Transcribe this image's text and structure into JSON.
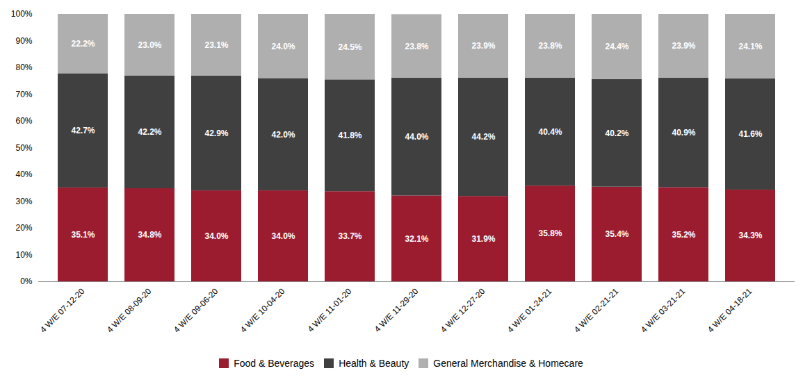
{
  "chart_data": {
    "type": "bar",
    "stacked": true,
    "data_labels": true,
    "grid": false,
    "legend": "bottom",
    "categories": [
      "4 W/E 07-12-20",
      "4 W/E 08-09-20",
      "4 W/E 09-06-20",
      "4 W/E 10-04-20",
      "4 W/E 11-01-20",
      "4 W/E 11-29-20",
      "4 W/E 12-27-20",
      "4 W/E 01-24-21",
      "4 W/E 02-21-21",
      "4 W/E 03-21-21",
      "4 W/E 04-18-21"
    ],
    "series": [
      {
        "name": "Food & Beverages",
        "color": "#9b1c2e",
        "values": [
          35.1,
          34.8,
          34.0,
          34.0,
          33.7,
          32.1,
          31.9,
          35.8,
          35.4,
          35.2,
          34.3
        ],
        "value_labels": [
          "35.1%",
          "34.8%",
          "34.0%",
          "34.0%",
          "33.7%",
          "32.1%",
          "31.9%",
          "35.8%",
          "35.4%",
          "35.2%",
          "34.3%"
        ]
      },
      {
        "name": "Health & Beauty",
        "color": "#404040",
        "values": [
          42.7,
          42.2,
          42.9,
          42.0,
          41.8,
          44.0,
          44.2,
          40.4,
          40.2,
          40.9,
          41.6
        ],
        "value_labels": [
          "42.7%",
          "42.2%",
          "42.9%",
          "42.0%",
          "41.8%",
          "44.0%",
          "44.2%",
          "40.4%",
          "40.2%",
          "40.9%",
          "41.6%"
        ]
      },
      {
        "name": "General Merchandise & Homecare",
        "color": "#b0afaf",
        "values": [
          22.2,
          23.0,
          23.1,
          24.0,
          24.5,
          23.8,
          23.9,
          23.8,
          24.4,
          23.9,
          24.1
        ],
        "value_labels": [
          "22.2%",
          "23.0%",
          "23.1%",
          "24.0%",
          "24.5%",
          "23.8%",
          "23.9%",
          "23.8%",
          "24.4%",
          "23.9%",
          "24.1%"
        ]
      }
    ],
    "ylim": [
      0,
      100
    ],
    "yticks": [
      {
        "value": 0,
        "label": "0%"
      },
      {
        "value": 10,
        "label": "10%"
      },
      {
        "value": 20,
        "label": "20%"
      },
      {
        "value": 30,
        "label": "30%"
      },
      {
        "value": 40,
        "label": "40%"
      },
      {
        "value": 50,
        "label": "50%"
      },
      {
        "value": 60,
        "label": "60%"
      },
      {
        "value": 70,
        "label": "70%"
      },
      {
        "value": 80,
        "label": "80%"
      },
      {
        "value": 90,
        "label": "90%"
      },
      {
        "value": 100,
        "label": "100%"
      }
    ]
  }
}
